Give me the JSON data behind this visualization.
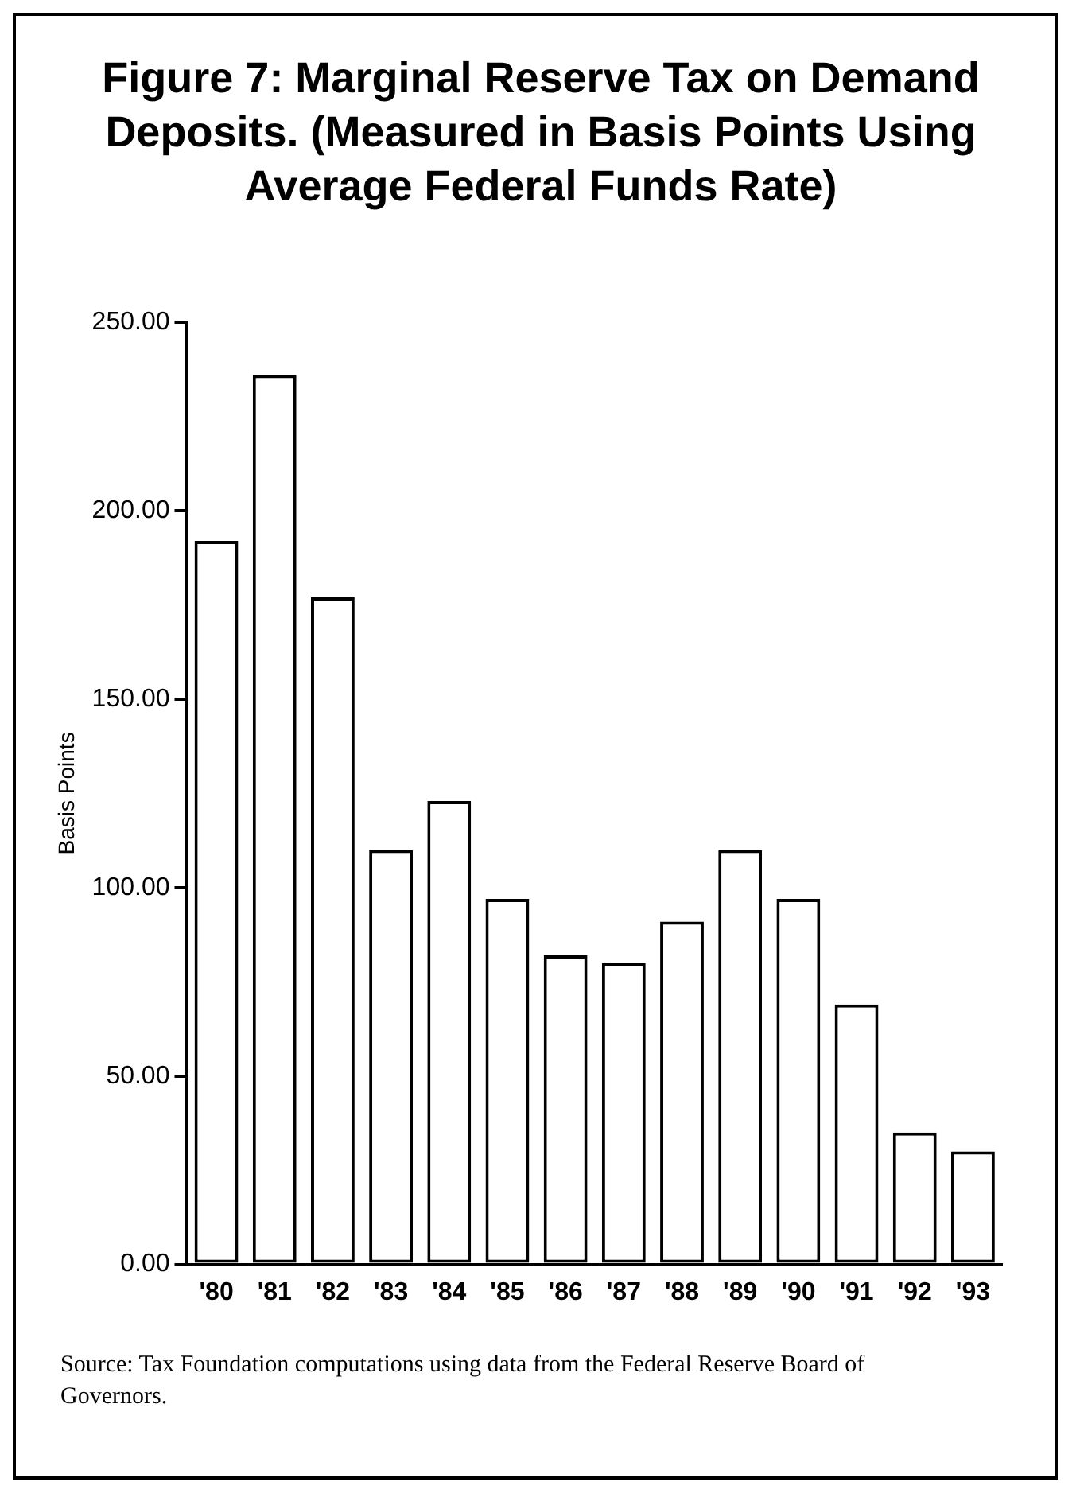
{
  "chart_data": {
    "type": "bar",
    "title": "Figure 7: Marginal Reserve Tax on Demand Deposits. (Measured in Basis Points Using Average Federal Funds Rate)",
    "ylabel": "Basis Points",
    "categories": [
      "'80",
      "'81",
      "'82",
      "'83",
      "'84",
      "'85",
      "'86",
      "'87",
      "'88",
      "'89",
      "'90",
      "'91",
      "'92",
      "'93"
    ],
    "values": [
      192,
      236,
      177,
      110,
      123,
      97,
      82,
      80,
      91,
      110,
      97,
      69,
      35,
      30
    ],
    "color": "#ffffff",
    "ylim": [
      0,
      250
    ],
    "yticks": [
      {
        "value": 0,
        "label": "0.00"
      },
      {
        "value": 50,
        "label": "50.00"
      },
      {
        "value": 100,
        "label": "100.00"
      },
      {
        "value": 150,
        "label": "150.00"
      },
      {
        "value": 200,
        "label": "200.00"
      },
      {
        "value": 250,
        "label": "250.00"
      }
    ],
    "grid": false,
    "legend": false,
    "annotations": [
      "Source: Tax Foundation computations using data from the Federal Reserve Board of Governors."
    ]
  }
}
